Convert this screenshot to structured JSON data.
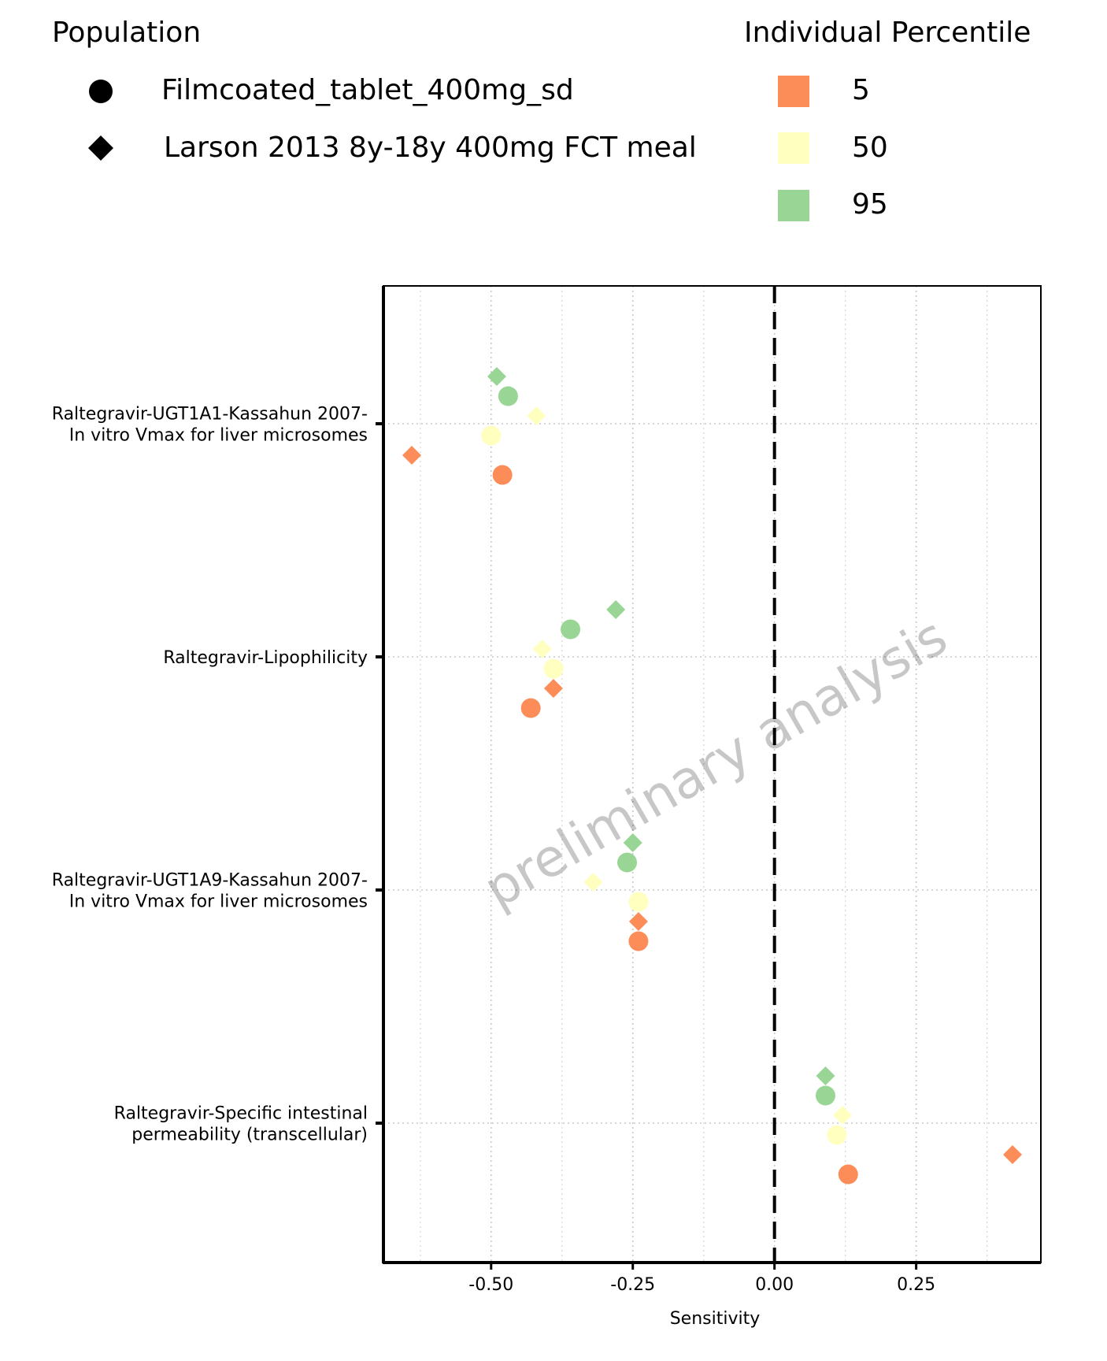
{
  "legend": {
    "population_title": "Population",
    "population_items": [
      {
        "label": "Filmcoated_tablet_400mg_sd",
        "shape": "circle"
      },
      {
        "label": "Larson 2013 8y-18y 400mg FCT meal",
        "shape": "diamond"
      }
    ],
    "percentile_title": "Individual Percentile",
    "percentile_items": [
      {
        "label": "5",
        "color": "#FC8D59"
      },
      {
        "label": "50",
        "color": "#FFFFBF"
      },
      {
        "label": "95",
        "color": "#99D594"
      }
    ]
  },
  "watermark": "preliminary analysis",
  "chart_data": {
    "type": "scatter",
    "xlabel": "Sensitivity",
    "ylabel": "",
    "xlim": [
      -0.69,
      0.47
    ],
    "x_ticks": [
      "-0.50",
      "-0.25",
      "0.00",
      "0.25"
    ],
    "x_tick_values": [
      -0.5,
      -0.25,
      0.0,
      0.25
    ],
    "reference_line": {
      "x": 0,
      "style": "dashed"
    },
    "grid": "dotted",
    "categories": [
      "Raltegravir-UGT1A1-Kassahun 2007-\nIn vitro Vmax for liver microsomes",
      "Raltegravir-Lipophilicity",
      "Raltegravir-UGT1A9-Kassahun 2007-\nIn vitro Vmax for liver microsomes",
      "Raltegravir-Specific intestinal\npermeability (transcellular)"
    ],
    "series": [
      {
        "population": "Filmcoated_tablet_400mg_sd",
        "shape": "circle",
        "percentile": "5",
        "values": [
          -0.48,
          -0.43,
          -0.24,
          0.13
        ]
      },
      {
        "population": "Filmcoated_tablet_400mg_sd",
        "shape": "circle",
        "percentile": "50",
        "values": [
          -0.5,
          -0.39,
          -0.24,
          0.11
        ]
      },
      {
        "population": "Filmcoated_tablet_400mg_sd",
        "shape": "circle",
        "percentile": "95",
        "values": [
          -0.47,
          -0.36,
          -0.26,
          0.09
        ]
      },
      {
        "population": "Larson 2013 8y-18y 400mg FCT meal",
        "shape": "diamond",
        "percentile": "5",
        "values": [
          -0.64,
          -0.39,
          -0.24,
          0.42
        ]
      },
      {
        "population": "Larson 2013 8y-18y 400mg FCT meal",
        "shape": "diamond",
        "percentile": "50",
        "values": [
          -0.42,
          -0.41,
          -0.32,
          0.12
        ]
      },
      {
        "population": "Larson 2013 8y-18y 400mg FCT meal",
        "shape": "diamond",
        "percentile": "95",
        "values": [
          -0.49,
          -0.28,
          -0.25,
          0.09
        ]
      }
    ]
  }
}
